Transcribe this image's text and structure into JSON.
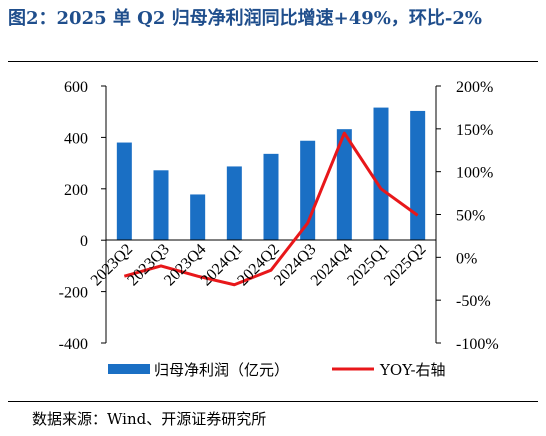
{
  "title": "图2：2025 单 Q2 归母净利润同比增速+49%，环比-2%",
  "source": "数据来源：Wind、开源证券研究所",
  "chart_data": {
    "type": "bar",
    "categories": [
      "2023Q2",
      "2023Q3",
      "2023Q4",
      "2024Q1",
      "2024Q2",
      "2024Q3",
      "2024Q4",
      "2025Q1",
      "2025Q2"
    ],
    "series": [
      {
        "name": "归母净利润（亿元）",
        "type": "bar",
        "axis": "left",
        "color": "#1a6fc4",
        "values": [
          380,
          272,
          178,
          287,
          336,
          387,
          432,
          516,
          503
        ]
      },
      {
        "name": "YOY-右轴",
        "type": "line",
        "axis": "right",
        "color": "#e8171a",
        "values": [
          -22,
          -10,
          -22,
          -32,
          -15,
          40,
          145,
          80,
          49
        ]
      }
    ],
    "y_left": {
      "min": -400,
      "max": 600,
      "ticks": [
        -400,
        -200,
        0,
        200,
        400,
        600
      ]
    },
    "y_right": {
      "min": -100,
      "max": 200,
      "ticks": [
        "-100%",
        "-50%",
        "0%",
        "50%",
        "100%",
        "150%",
        "200%"
      ]
    },
    "legend_position": "bottom",
    "grid": false
  }
}
